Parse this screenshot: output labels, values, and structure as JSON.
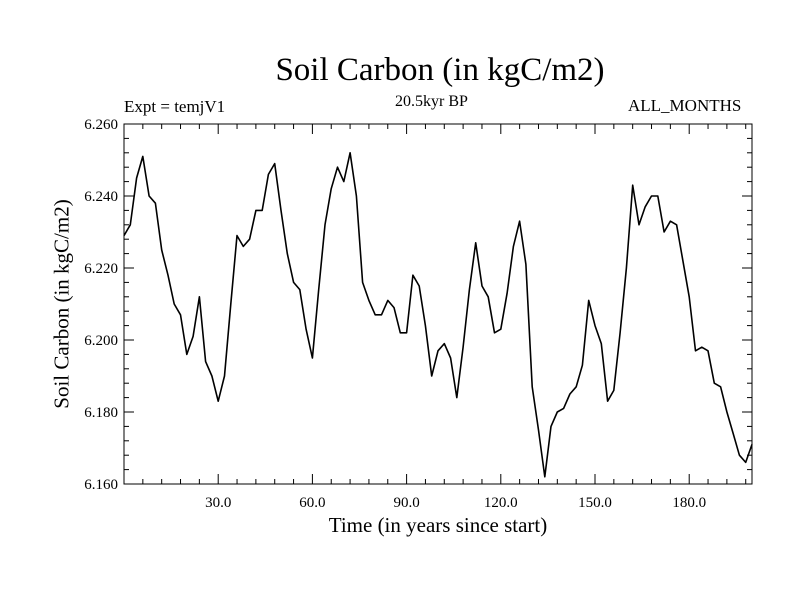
{
  "chart_data": {
    "type": "line",
    "title": "Soil Carbon (in kgC/m2)",
    "subtitle": "20.5kyr BP",
    "left_label": "Expt = temjV1",
    "right_label": "ALL_MONTHS",
    "xlabel": "Time (in years since start)",
    "ylabel": "Soil Carbon (in kgC/m2)",
    "xlim": [
      0,
      200
    ],
    "ylim": [
      6.16,
      6.26
    ],
    "x_ticks": [
      30,
      60,
      90,
      120,
      150,
      180
    ],
    "x_tick_labels": [
      "30.0",
      "60.0",
      "90.0",
      "120.0",
      "150.0",
      "180.0"
    ],
    "y_ticks": [
      6.16,
      6.18,
      6.2,
      6.22,
      6.24,
      6.26
    ],
    "y_tick_labels": [
      "6.160",
      "6.180",
      "6.200",
      "6.220",
      "6.240",
      "6.260"
    ],
    "series": [
      {
        "name": "Soil Carbon",
        "color": "#000000",
        "x": [
          0,
          2,
          4,
          6,
          8,
          10,
          12,
          14,
          16,
          18,
          20,
          22,
          24,
          26,
          28,
          30,
          32,
          34,
          36,
          38,
          40,
          42,
          44,
          46,
          48,
          50,
          52,
          54,
          56,
          58,
          60,
          62,
          64,
          66,
          68,
          70,
          72,
          74,
          76,
          78,
          80,
          82,
          84,
          86,
          88,
          90,
          92,
          94,
          96,
          98,
          100,
          102,
          104,
          106,
          108,
          110,
          112,
          114,
          116,
          118,
          120,
          122,
          124,
          126,
          128,
          130,
          132,
          134,
          136,
          138,
          140,
          142,
          144,
          146,
          148,
          150,
          152,
          154,
          156,
          158,
          160,
          162,
          164,
          166,
          168,
          170,
          172,
          174,
          176,
          178,
          180,
          182,
          184,
          186,
          188,
          190,
          192,
          194,
          196,
          198,
          200
        ],
        "values": [
          6.229,
          6.232,
          6.245,
          6.251,
          6.24,
          6.238,
          6.225,
          6.218,
          6.21,
          6.207,
          6.196,
          6.201,
          6.212,
          6.194,
          6.19,
          6.183,
          6.19,
          6.21,
          6.229,
          6.226,
          6.228,
          6.236,
          6.236,
          6.246,
          6.249,
          6.236,
          6.224,
          6.216,
          6.214,
          6.203,
          6.195,
          6.214,
          6.232,
          6.242,
          6.248,
          6.244,
          6.252,
          6.24,
          6.216,
          6.211,
          6.207,
          6.207,
          6.211,
          6.209,
          6.202,
          6.202,
          6.218,
          6.215,
          6.204,
          6.19,
          6.197,
          6.199,
          6.195,
          6.184,
          6.198,
          6.214,
          6.227,
          6.215,
          6.212,
          6.202,
          6.203,
          6.213,
          6.226,
          6.233,
          6.221,
          6.187,
          6.175,
          6.162,
          6.176,
          6.18,
          6.181,
          6.185,
          6.187,
          6.193,
          6.211,
          6.204,
          6.199,
          6.183,
          6.186,
          6.202,
          6.22,
          6.243,
          6.232,
          6.237,
          6.24,
          6.24,
          6.23,
          6.233,
          6.232,
          6.222,
          6.212,
          6.197,
          6.198,
          6.197,
          6.188,
          6.187,
          6.18,
          6.174,
          6.168,
          6.166,
          6.171
        ]
      }
    ],
    "grid": false,
    "legend": "none"
  }
}
